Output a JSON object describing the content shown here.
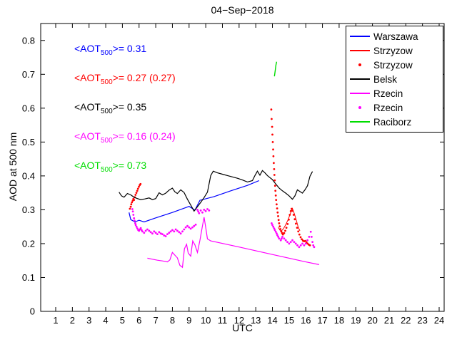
{
  "title": "04−Sep−2018",
  "axes": {
    "xlabel": "UTC",
    "ylabel": "AOD at 500 nm"
  },
  "annotations": [
    {
      "pre": "<AOT",
      "sub": "500",
      "post": ">= 0.31",
      "color": "#0000ff"
    },
    {
      "pre": "<AOT",
      "sub": "500",
      "post": ">= 0.27 (0.27)",
      "color": "#ff0000"
    },
    {
      "pre": "<AOT",
      "sub": "500",
      "post": ">= 0.35",
      "color": "#000000"
    },
    {
      "pre": "<AOT",
      "sub": "500",
      "post": ">= 0.16 (0.24)",
      "color": "#ff00ff"
    },
    {
      "pre": "<AOT",
      "sub": "500",
      "post": ">= 0.73",
      "color": "#00dd00"
    }
  ],
  "legend": {
    "items": [
      {
        "label": "Warszawa",
        "color": "#0000ff",
        "marker": "line"
      },
      {
        "label": "Strzyzow",
        "color": "#ff0000",
        "marker": "line"
      },
      {
        "label": "Strzyzow",
        "color": "#ff0000",
        "marker": "dot"
      },
      {
        "label": "Belsk",
        "color": "#000000",
        "marker": "line"
      },
      {
        "label": "Rzecin",
        "color": "#ff00ff",
        "marker": "line"
      },
      {
        "label": "Rzecin",
        "color": "#ff00ff",
        "marker": "dot"
      },
      {
        "label": "Raciborz",
        "color": "#00dd00",
        "marker": "line"
      }
    ]
  },
  "chart_data": {
    "type": "line",
    "title": "04−Sep−2018",
    "xlabel": "UTC",
    "ylabel": "AOD at 500 nm",
    "xlim": [
      0.1,
      24.3
    ],
    "ylim": [
      0,
      0.85
    ],
    "xticks": [
      1,
      2,
      3,
      4,
      5,
      6,
      7,
      8,
      9,
      10,
      11,
      12,
      13,
      14,
      15,
      16,
      17,
      18,
      19,
      20,
      21,
      22,
      23,
      24
    ],
    "yticks": [
      0,
      0.1,
      0.2,
      0.3,
      0.4,
      0.5,
      0.6,
      0.7,
      0.8
    ],
    "grid": false,
    "legend_position": "top-right",
    "series": [
      {
        "id": "warszawa-line",
        "name": "Warszawa",
        "style": "line",
        "color": "#0000ff",
        "width": 1.2,
        "points": [
          [
            5.4,
            0.292
          ],
          [
            5.5,
            0.271
          ],
          [
            5.75,
            0.264
          ],
          [
            6.0,
            0.269
          ],
          [
            6.3,
            0.264
          ],
          [
            7.0,
            0.276
          ],
          [
            8.0,
            0.292
          ],
          [
            9.0,
            0.31
          ],
          [
            9.35,
            0.299
          ],
          [
            9.65,
            0.328
          ],
          [
            10.5,
            0.339
          ],
          [
            11.5,
            0.356
          ],
          [
            12.5,
            0.372
          ],
          [
            13.2,
            0.386
          ]
        ]
      },
      {
        "id": "strzyzow-line",
        "name": "Strzyzow",
        "style": "line",
        "color": "#ff0000",
        "width": 1,
        "points": [
          [
            14.35,
            0.248
          ],
          [
            14.5,
            0.236
          ],
          [
            14.65,
            0.243
          ],
          [
            14.8,
            0.256
          ],
          [
            14.95,
            0.272
          ],
          [
            15.1,
            0.292
          ],
          [
            15.2,
            0.304
          ],
          [
            15.32,
            0.288
          ],
          [
            15.45,
            0.266
          ],
          [
            15.55,
            0.248
          ],
          [
            15.65,
            0.238
          ]
        ]
      },
      {
        "id": "strzyzow-dots",
        "name": "Strzyzow",
        "style": "scatter",
        "color": "#ff0000",
        "points": [
          [
            5.45,
            0.303
          ],
          [
            5.5,
            0.309
          ],
          [
            5.53,
            0.316
          ],
          [
            5.57,
            0.322
          ],
          [
            5.62,
            0.327
          ],
          [
            5.66,
            0.332
          ],
          [
            5.7,
            0.329
          ],
          [
            5.74,
            0.337
          ],
          [
            5.79,
            0.344
          ],
          [
            5.84,
            0.35
          ],
          [
            5.89,
            0.356
          ],
          [
            5.94,
            0.362
          ],
          [
            5.99,
            0.368
          ],
          [
            6.04,
            0.373
          ],
          [
            6.09,
            0.376
          ],
          [
            13.93,
            0.596
          ],
          [
            13.95,
            0.568
          ],
          [
            13.98,
            0.545
          ],
          [
            14.0,
            0.522
          ],
          [
            14.02,
            0.5
          ],
          [
            14.04,
            0.478
          ],
          [
            14.06,
            0.458
          ],
          [
            14.08,
            0.438
          ],
          [
            14.1,
            0.42
          ],
          [
            14.12,
            0.403
          ],
          [
            14.14,
            0.387
          ],
          [
            14.16,
            0.371
          ],
          [
            14.18,
            0.356
          ],
          [
            14.2,
            0.342
          ],
          [
            14.22,
            0.329
          ],
          [
            14.25,
            0.316
          ],
          [
            14.28,
            0.304
          ],
          [
            14.31,
            0.292
          ],
          [
            14.34,
            0.281
          ],
          [
            14.37,
            0.27
          ],
          [
            14.4,
            0.26
          ],
          [
            14.44,
            0.251
          ],
          [
            14.48,
            0.243
          ],
          [
            14.53,
            0.236
          ],
          [
            14.58,
            0.231
          ],
          [
            14.63,
            0.227
          ],
          [
            14.7,
            0.231
          ],
          [
            14.77,
            0.238
          ],
          [
            14.84,
            0.247
          ],
          [
            14.91,
            0.258
          ],
          [
            14.98,
            0.271
          ],
          [
            15.04,
            0.285
          ],
          [
            15.1,
            0.296
          ],
          [
            15.15,
            0.303
          ],
          [
            15.2,
            0.297
          ],
          [
            15.27,
            0.285
          ],
          [
            15.34,
            0.272
          ],
          [
            15.41,
            0.259
          ],
          [
            15.48,
            0.247
          ],
          [
            15.55,
            0.236
          ],
          [
            15.62,
            0.227
          ],
          [
            15.69,
            0.219
          ],
          [
            15.76,
            0.213
          ],
          [
            15.83,
            0.209
          ],
          [
            15.9,
            0.207
          ],
          [
            15.97,
            0.208
          ],
          [
            16.04,
            0.204
          ],
          [
            16.11,
            0.2
          ],
          [
            16.18,
            0.197
          ],
          [
            16.25,
            0.195
          ]
        ]
      },
      {
        "id": "belsk-line",
        "name": "Belsk",
        "style": "line",
        "color": "#000000",
        "width": 1.2,
        "points": [
          [
            4.8,
            0.352
          ],
          [
            4.95,
            0.341
          ],
          [
            5.1,
            0.337
          ],
          [
            5.3,
            0.348
          ],
          [
            5.5,
            0.344
          ],
          [
            5.7,
            0.337
          ],
          [
            5.9,
            0.333
          ],
          [
            6.1,
            0.33
          ],
          [
            6.35,
            0.332
          ],
          [
            6.6,
            0.335
          ],
          [
            6.8,
            0.33
          ],
          [
            7.0,
            0.333
          ],
          [
            7.2,
            0.35
          ],
          [
            7.4,
            0.344
          ],
          [
            7.6,
            0.349
          ],
          [
            7.8,
            0.358
          ],
          [
            8.0,
            0.364
          ],
          [
            8.15,
            0.353
          ],
          [
            8.3,
            0.348
          ],
          [
            8.5,
            0.359
          ],
          [
            8.7,
            0.351
          ],
          [
            8.9,
            0.331
          ],
          [
            9.1,
            0.314
          ],
          [
            9.3,
            0.296
          ],
          [
            9.5,
            0.309
          ],
          [
            9.7,
            0.322
          ],
          [
            9.9,
            0.336
          ],
          [
            10.1,
            0.352
          ],
          [
            10.3,
            0.401
          ],
          [
            10.45,
            0.414
          ],
          [
            10.7,
            0.409
          ],
          [
            11.0,
            0.405
          ],
          [
            11.3,
            0.401
          ],
          [
            11.6,
            0.397
          ],
          [
            11.9,
            0.393
          ],
          [
            12.2,
            0.388
          ],
          [
            12.5,
            0.382
          ],
          [
            12.8,
            0.386
          ],
          [
            12.95,
            0.401
          ],
          [
            13.1,
            0.414
          ],
          [
            13.25,
            0.402
          ],
          [
            13.4,
            0.416
          ],
          [
            13.55,
            0.409
          ],
          [
            13.7,
            0.401
          ],
          [
            13.85,
            0.395
          ],
          [
            14.0,
            0.389
          ],
          [
            14.2,
            0.376
          ],
          [
            14.4,
            0.364
          ],
          [
            14.6,
            0.356
          ],
          [
            14.8,
            0.349
          ],
          [
            15.0,
            0.341
          ],
          [
            15.2,
            0.331
          ],
          [
            15.35,
            0.341
          ],
          [
            15.5,
            0.359
          ],
          [
            15.65,
            0.354
          ],
          [
            15.8,
            0.349
          ],
          [
            15.95,
            0.359
          ],
          [
            16.1,
            0.371
          ],
          [
            16.25,
            0.399
          ],
          [
            16.4,
            0.413
          ]
        ]
      },
      {
        "id": "rzecin-line",
        "name": "Rzecin",
        "style": "line",
        "color": "#ff00ff",
        "width": 1.2,
        "points": [
          [
            6.5,
            0.157
          ],
          [
            6.8,
            0.154
          ],
          [
            7.1,
            0.151
          ],
          [
            7.4,
            0.149
          ],
          [
            7.7,
            0.146
          ],
          [
            7.85,
            0.152
          ],
          [
            8.0,
            0.174
          ],
          [
            8.15,
            0.166
          ],
          [
            8.3,
            0.158
          ],
          [
            8.45,
            0.136
          ],
          [
            8.6,
            0.13
          ],
          [
            8.72,
            0.185
          ],
          [
            8.85,
            0.198
          ],
          [
            8.95,
            0.172
          ],
          [
            9.1,
            0.163
          ],
          [
            9.22,
            0.208
          ],
          [
            9.35,
            0.196
          ],
          [
            9.5,
            0.174
          ],
          [
            9.65,
            0.21
          ],
          [
            9.8,
            0.252
          ],
          [
            9.9,
            0.278
          ],
          [
            10.0,
            0.248
          ],
          [
            10.1,
            0.214
          ],
          [
            10.3,
            0.208
          ],
          [
            12.0,
            0.19
          ],
          [
            14.0,
            0.168
          ],
          [
            16.0,
            0.146
          ],
          [
            16.8,
            0.138
          ]
        ]
      },
      {
        "id": "rzecin-dots",
        "name": "Rzecin",
        "style": "scatter",
        "color": "#ff00ff",
        "points": [
          [
            5.6,
            0.302
          ],
          [
            5.63,
            0.295
          ],
          [
            5.66,
            0.285
          ],
          [
            5.7,
            0.275
          ],
          [
            5.73,
            0.268
          ],
          [
            5.77,
            0.26
          ],
          [
            5.8,
            0.255
          ],
          [
            5.85,
            0.25
          ],
          [
            5.9,
            0.245
          ],
          [
            5.95,
            0.24
          ],
          [
            6.0,
            0.238
          ],
          [
            6.05,
            0.242
          ],
          [
            6.1,
            0.246
          ],
          [
            6.15,
            0.24
          ],
          [
            6.2,
            0.236
          ],
          [
            6.3,
            0.232
          ],
          [
            6.4,
            0.238
          ],
          [
            6.5,
            0.242
          ],
          [
            6.6,
            0.238
          ],
          [
            6.7,
            0.234
          ],
          [
            6.8,
            0.23
          ],
          [
            6.9,
            0.236
          ],
          [
            7.0,
            0.232
          ],
          [
            7.1,
            0.228
          ],
          [
            7.2,
            0.234
          ],
          [
            7.3,
            0.23
          ],
          [
            7.4,
            0.228
          ],
          [
            7.5,
            0.224
          ],
          [
            7.6,
            0.222
          ],
          [
            7.7,
            0.228
          ],
          [
            7.8,
            0.232
          ],
          [
            7.9,
            0.236
          ],
          [
            8.0,
            0.24
          ],
          [
            8.1,
            0.236
          ],
          [
            8.2,
            0.242
          ],
          [
            8.3,
            0.238
          ],
          [
            8.4,
            0.234
          ],
          [
            8.5,
            0.23
          ],
          [
            8.6,
            0.236
          ],
          [
            8.7,
            0.242
          ],
          [
            8.8,
            0.248
          ],
          [
            8.9,
            0.252
          ],
          [
            9.0,
            0.248
          ],
          [
            9.1,
            0.244
          ],
          [
            9.2,
            0.248
          ],
          [
            9.3,
            0.252
          ],
          [
            9.4,
            0.256
          ],
          [
            9.5,
            0.3
          ],
          [
            9.55,
            0.295
          ],
          [
            9.6,
            0.29
          ],
          [
            9.7,
            0.298
          ],
          [
            9.8,
            0.292
          ],
          [
            9.9,
            0.3
          ],
          [
            10.0,
            0.296
          ],
          [
            10.1,
            0.302
          ],
          [
            10.2,
            0.298
          ],
          [
            13.95,
            0.26
          ],
          [
            14.0,
            0.255
          ],
          [
            14.05,
            0.25
          ],
          [
            14.1,
            0.245
          ],
          [
            14.15,
            0.24
          ],
          [
            14.2,
            0.235
          ],
          [
            14.25,
            0.23
          ],
          [
            14.3,
            0.225
          ],
          [
            14.35,
            0.22
          ],
          [
            14.4,
            0.215
          ],
          [
            14.5,
            0.21
          ],
          [
            14.55,
            0.215
          ],
          [
            14.6,
            0.22
          ],
          [
            14.7,
            0.215
          ],
          [
            14.8,
            0.21
          ],
          [
            14.9,
            0.205
          ],
          [
            15.0,
            0.2
          ],
          [
            15.1,
            0.205
          ],
          [
            15.2,
            0.21
          ],
          [
            15.3,
            0.205
          ],
          [
            15.4,
            0.2
          ],
          [
            15.5,
            0.195
          ],
          [
            15.6,
            0.19
          ],
          [
            15.7,
            0.195
          ],
          [
            15.8,
            0.2
          ],
          [
            15.9,
            0.195
          ],
          [
            16.0,
            0.2
          ],
          [
            16.1,
            0.21
          ],
          [
            16.2,
            0.22
          ],
          [
            16.3,
            0.235
          ],
          [
            16.35,
            0.22
          ],
          [
            16.4,
            0.205
          ],
          [
            16.45,
            0.195
          ],
          [
            16.5,
            0.19
          ]
        ]
      },
      {
        "id": "raciborz-line",
        "name": "Raciborz",
        "style": "line",
        "color": "#00dd00",
        "width": 1.4,
        "points": [
          [
            14.12,
            0.694
          ],
          [
            14.17,
            0.712
          ],
          [
            14.21,
            0.727
          ],
          [
            14.25,
            0.737
          ]
        ]
      }
    ]
  }
}
